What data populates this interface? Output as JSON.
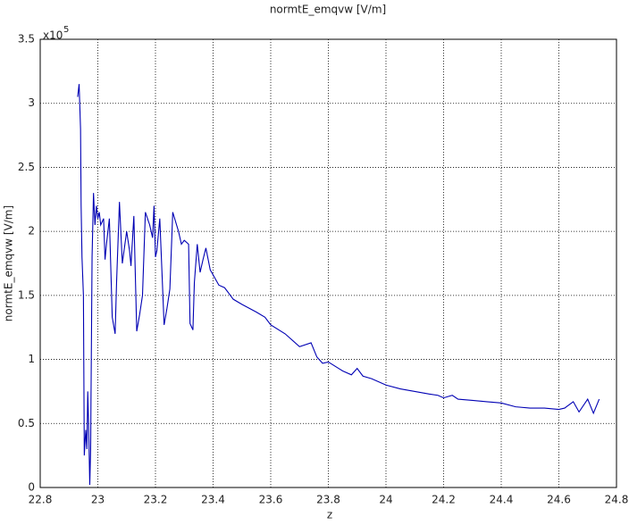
{
  "chart_data": {
    "type": "line",
    "title": "normtE_emqvw [V/m]",
    "xlabel": "z",
    "ylabel": "normtE_emqvw [V/m]",
    "y_multiplier": "x10",
    "y_exponent": "5",
    "x": [
      22.93,
      22.935,
      22.94,
      22.942,
      22.945,
      22.95,
      22.953,
      22.958,
      22.962,
      22.965,
      22.968,
      22.972,
      22.975,
      22.98,
      22.985,
      22.99,
      22.995,
      23.0,
      23.005,
      23.01,
      23.02,
      23.025,
      23.03,
      23.04,
      23.05,
      23.06,
      23.065,
      23.075,
      23.085,
      23.1,
      23.11,
      23.115,
      23.125,
      23.135,
      23.145,
      23.155,
      23.165,
      23.18,
      23.19,
      23.195,
      23.2,
      23.205,
      23.215,
      23.23,
      23.24,
      23.25,
      23.26,
      23.28,
      23.29,
      23.3,
      23.315,
      23.32,
      23.33,
      23.335,
      23.345,
      23.355,
      23.365,
      23.375,
      23.39,
      23.42,
      23.44,
      23.47,
      23.5,
      23.55,
      23.58,
      23.6,
      23.65,
      23.7,
      23.74,
      23.76,
      23.78,
      23.8,
      23.85,
      23.88,
      23.9,
      23.92,
      23.95,
      24.0,
      24.05,
      24.1,
      24.15,
      24.18,
      24.2,
      24.23,
      24.25,
      24.3,
      24.35,
      24.4,
      24.45,
      24.5,
      24.55,
      24.6,
      24.62,
      24.65,
      24.67,
      24.7,
      24.72,
      24.74
    ],
    "series": [
      {
        "color": "#0000b4",
        "values": [
          3.05,
          3.15,
          2.8,
          2.2,
          1.8,
          1.5,
          0.25,
          0.45,
          0.3,
          0.75,
          0.5,
          0.02,
          0.3,
          1.8,
          2.3,
          2.05,
          2.2,
          2.1,
          2.15,
          2.05,
          2.1,
          1.78,
          1.9,
          2.1,
          1.33,
          1.2,
          1.6,
          2.23,
          1.75,
          2.0,
          1.85,
          1.73,
          2.12,
          1.22,
          1.35,
          1.5,
          2.15,
          2.05,
          1.95,
          2.2,
          1.8,
          1.85,
          2.1,
          1.27,
          1.4,
          1.55,
          2.15,
          2.0,
          1.9,
          1.93,
          1.9,
          1.28,
          1.23,
          1.6,
          1.9,
          1.68,
          1.78,
          1.87,
          1.7,
          1.58,
          1.56,
          1.47,
          1.43,
          1.37,
          1.33,
          1.27,
          1.2,
          1.1,
          1.13,
          1.02,
          0.97,
          0.98,
          0.91,
          0.88,
          0.93,
          0.87,
          0.85,
          0.8,
          0.77,
          0.75,
          0.73,
          0.72,
          0.7,
          0.72,
          0.69,
          0.68,
          0.67,
          0.66,
          0.63,
          0.62,
          0.62,
          0.61,
          0.62,
          0.67,
          0.59,
          0.69,
          0.58,
          0.69
        ]
      }
    ],
    "xlim": [
      22.8,
      24.8
    ],
    "xticks": [
      22.8,
      23,
      23.2,
      23.4,
      23.6,
      23.8,
      24,
      24.2,
      24.4,
      24.6,
      24.8
    ],
    "ylim": [
      0,
      3.5
    ],
    "yticks": [
      0,
      0.5,
      1,
      1.5,
      2,
      2.5,
      3,
      3.5
    ],
    "grid": true
  }
}
